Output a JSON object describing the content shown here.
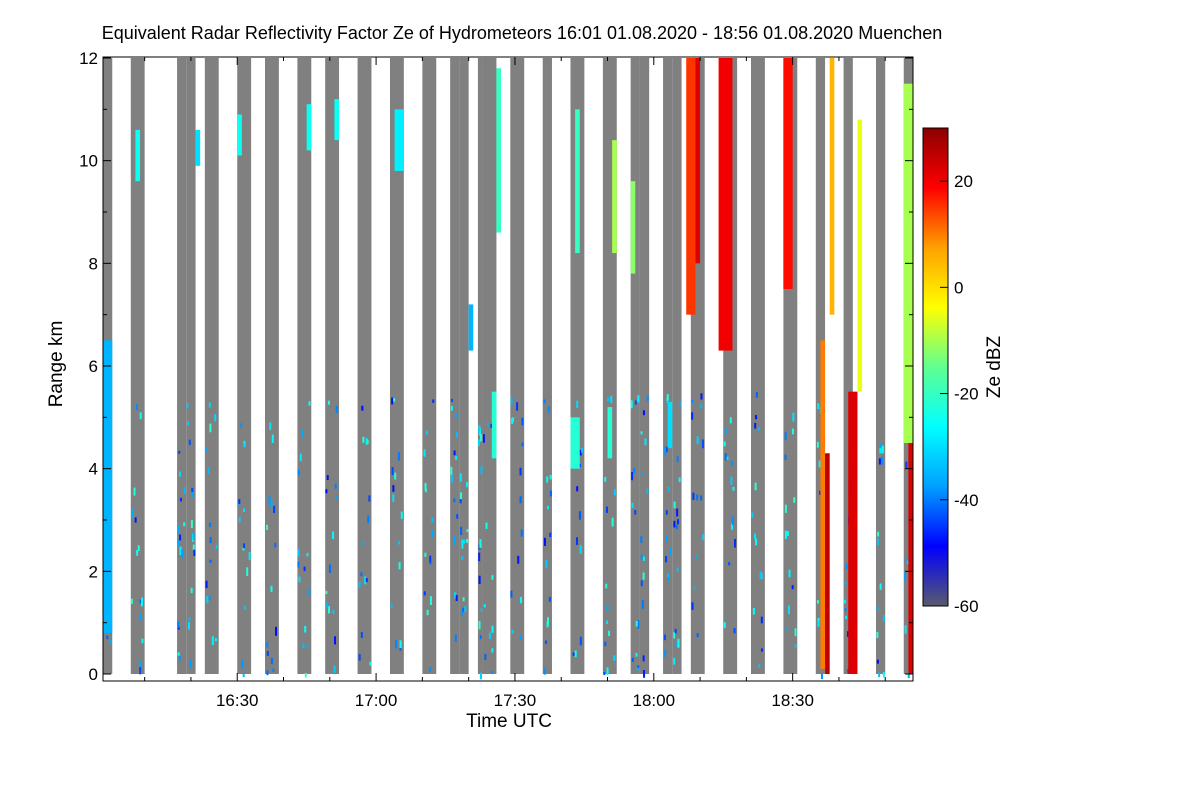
{
  "chart_data": {
    "type": "heatmap",
    "title": "Equivalent Radar Reflectivity Factor Ze of Hydrometeors",
    "time_range_label": "16:01 01.08.2020 - 18:56 01.08.2020",
    "location": "Muenchen",
    "xlabel": "Time UTC",
    "ylabel": "Range km",
    "x_range_minutes_utc": [
      "16:01",
      "18:56"
    ],
    "xticks": [
      "16:30",
      "17:00",
      "17:30",
      "18:00",
      "18:30"
    ],
    "ylim": [
      0,
      12
    ],
    "yticks": [
      "0",
      "2",
      "4",
      "6",
      "8",
      "10",
      "12"
    ],
    "colorbar": {
      "label": "Ze dBZ",
      "range": [
        -60,
        30
      ],
      "ticks": [
        "20",
        "0",
        "-20",
        "-40",
        "-60"
      ],
      "colormap": [
        "#5a5a6e",
        "#0000ff",
        "#00a0ff",
        "#00ffff",
        "#60ff90",
        "#ffff00",
        "#ffa000",
        "#ff0000",
        "#8b0000"
      ]
    },
    "background_color": "#808080",
    "no_data_color": "#ffffff",
    "data_columns": [
      [
        "16:01",
        "16:03"
      ],
      [
        "16:07",
        "16:10"
      ],
      [
        "16:17",
        "16:19"
      ],
      [
        "16:19",
        "16:21"
      ],
      [
        "16:23",
        "16:26"
      ],
      [
        "16:30",
        "16:33"
      ],
      [
        "16:36",
        "16:39"
      ],
      [
        "16:43",
        "16:46"
      ],
      [
        "16:49",
        "16:52"
      ],
      [
        "16:56",
        "16:59"
      ],
      [
        "17:03",
        "17:06"
      ],
      [
        "17:10",
        "17:13"
      ],
      [
        "17:16",
        "17:18"
      ],
      [
        "17:18",
        "17:20"
      ],
      [
        "17:22",
        "17:23"
      ],
      [
        "17:23",
        "17:26"
      ],
      [
        "17:29",
        "17:32"
      ],
      [
        "17:36",
        "17:38"
      ],
      [
        "17:42",
        "17:45"
      ],
      [
        "17:49",
        "17:52"
      ],
      [
        "17:55",
        "17:57"
      ],
      [
        "17:57",
        "17:59"
      ],
      [
        "18:02",
        "18:04"
      ],
      [
        "18:04",
        "18:06"
      ],
      [
        "18:08",
        "18:11"
      ],
      [
        "18:15",
        "18:18"
      ],
      [
        "18:21",
        "18:24"
      ],
      [
        "18:28",
        "18:31"
      ],
      [
        "18:35",
        "18:37"
      ],
      [
        "18:41",
        "18:43"
      ],
      [
        "18:48",
        "18:50"
      ],
      [
        "18:54",
        "18:56"
      ]
    ],
    "echo_features": [
      {
        "t0": "16:01",
        "t1": "16:03",
        "z0": 0.8,
        "z1": 6.5,
        "dbz": -35
      },
      {
        "t0": "16:08",
        "t1": "16:09",
        "z0": 9.6,
        "z1": 10.6,
        "dbz": -25
      },
      {
        "t0": "16:21",
        "t1": "16:22",
        "z0": 9.9,
        "z1": 10.6,
        "dbz": -30
      },
      {
        "t0": "16:30",
        "t1": "16:31",
        "z0": 10.1,
        "z1": 10.9,
        "dbz": -25
      },
      {
        "t0": "16:45",
        "t1": "16:46",
        "z0": 10.2,
        "z1": 11.1,
        "dbz": -25
      },
      {
        "t0": "16:51",
        "t1": "16:52",
        "z0": 10.4,
        "z1": 11.2,
        "dbz": -25
      },
      {
        "t0": "17:04",
        "t1": "17:06",
        "z0": 9.8,
        "z1": 11.0,
        "dbz": -28
      },
      {
        "t0": "17:20",
        "t1": "17:21",
        "z0": 6.3,
        "z1": 7.2,
        "dbz": -35
      },
      {
        "t0": "17:25",
        "t1": "17:26",
        "z0": 4.2,
        "z1": 5.5,
        "dbz": -22
      },
      {
        "t0": "17:26",
        "t1": "17:27",
        "z0": 8.6,
        "z1": 11.8,
        "dbz": -20
      },
      {
        "t0": "17:42",
        "t1": "17:44",
        "z0": 4.0,
        "z1": 5.0,
        "dbz": -22
      },
      {
        "t0": "17:43",
        "t1": "17:44",
        "z0": 8.2,
        "z1": 11.0,
        "dbz": -20
      },
      {
        "t0": "17:50",
        "t1": "17:51",
        "z0": 4.2,
        "z1": 5.2,
        "dbz": -22
      },
      {
        "t0": "17:51",
        "t1": "17:52",
        "z0": 8.2,
        "z1": 10.4,
        "dbz": -10
      },
      {
        "t0": "17:55",
        "t1": "17:56",
        "z0": 7.8,
        "z1": 9.6,
        "dbz": -12
      },
      {
        "t0": "18:03",
        "t1": "18:04",
        "z0": 4.4,
        "z1": 5.3,
        "dbz": -30
      },
      {
        "t0": "18:07",
        "t1": "18:09",
        "z0": 7.0,
        "z1": 12.0,
        "dbz": 15
      },
      {
        "t0": "18:09",
        "t1": "18:10",
        "z0": 8.0,
        "z1": 12.0,
        "dbz": 22
      },
      {
        "t0": "18:14",
        "t1": "18:17",
        "z0": 6.3,
        "z1": 12.0,
        "dbz": 20
      },
      {
        "t0": "18:28",
        "t1": "18:30",
        "z0": 7.5,
        "z1": 12.0,
        "dbz": 18
      },
      {
        "t0": "18:36",
        "t1": "18:37",
        "z0": 0.1,
        "z1": 6.5,
        "dbz": 10
      },
      {
        "t0": "18:37",
        "t1": "18:38",
        "z0": 0.0,
        "z1": 4.3,
        "dbz": 25
      },
      {
        "t0": "18:38",
        "t1": "18:39",
        "z0": 7.0,
        "z1": 12.0,
        "dbz": 5
      },
      {
        "t0": "18:42",
        "t1": "18:44",
        "z0": 0.0,
        "z1": 5.5,
        "dbz": 22
      },
      {
        "t0": "18:44",
        "t1": "18:45",
        "z0": 5.5,
        "z1": 10.8,
        "dbz": -5
      },
      {
        "t0": "18:55",
        "t1": "18:56",
        "z0": 0.0,
        "z1": 4.5,
        "dbz": 22
      },
      {
        "t0": "18:54",
        "t1": "18:56",
        "z0": 4.5,
        "z1": 11.5,
        "dbz": -10
      }
    ]
  }
}
